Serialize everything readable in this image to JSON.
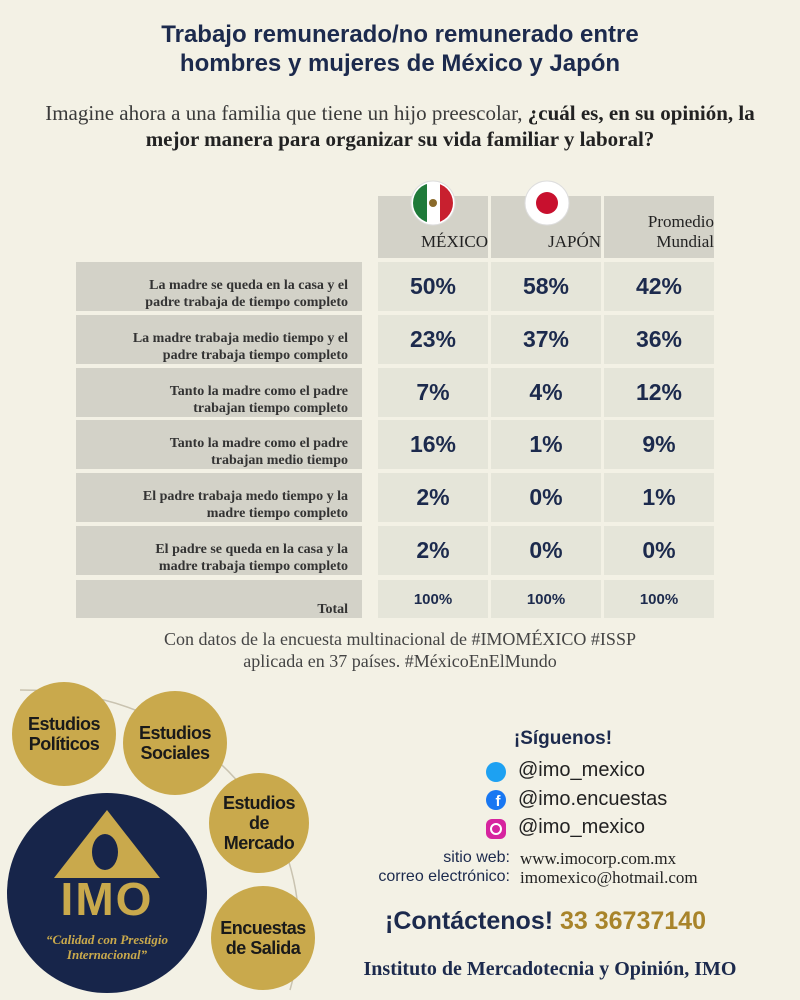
{
  "header": {
    "title_lines": [
      "Trabajo remunerado/no remunerado entre",
      "hombres y mujeres de México y Japón"
    ],
    "question_plain": "Imagine ahora a una familia que tiene un hijo preescolar, ",
    "question_bold": "¿cuál es, en su opinión, la mejor manera para organizar su vida familiar y laboral?"
  },
  "table": {
    "columns": [
      [
        "MÉXICO"
      ],
      [
        "JAPÓN"
      ],
      [
        "Promedio",
        "Mundial"
      ]
    ],
    "rows": [
      {
        "label": [
          "La madre se queda en la casa y el",
          "padre trabaja de tiempo completo"
        ],
        "cells": [
          "50%",
          "58%",
          "42%"
        ]
      },
      {
        "label": [
          "La madre trabaja medio tiempo y el",
          "padre trabaja tiempo completo"
        ],
        "cells": [
          "23%",
          "37%",
          "36%"
        ]
      },
      {
        "label": [
          "Tanto la madre como el padre",
          "trabajan tiempo completo"
        ],
        "cells": [
          "7%",
          "4%",
          "12%"
        ]
      },
      {
        "label": [
          "Tanto la madre como el padre",
          "trabajan medio tiempo"
        ],
        "cells": [
          "16%",
          "1%",
          "9%"
        ]
      },
      {
        "label": [
          "El padre trabaja medo tiempo y la",
          "madre tiempo completo"
        ],
        "cells": [
          "2%",
          "0%",
          "1%"
        ]
      },
      {
        "label": [
          "El padre se queda en la casa y la",
          "madre trabaja tiempo completo"
        ],
        "cells": [
          "2%",
          "0%",
          "0%"
        ]
      }
    ],
    "total": {
      "label": [
        "Total"
      ],
      "cells": [
        "100%",
        "100%",
        "100%"
      ]
    }
  },
  "source_lines": [
    "Con datos de la encuesta multinacional de #IMOMÉXICO #ISSP",
    "aplicada en 37 países. #MéxicoEnElMundo"
  ],
  "services": [
    [
      "Estudios",
      "Políticos"
    ],
    [
      "Estudios",
      "Sociales"
    ],
    [
      "Estudios",
      "de",
      "Mercado"
    ],
    [
      "Encuestas",
      "de Salida"
    ]
  ],
  "logo": {
    "name": "IMO",
    "tagline_lines": [
      "“Calidad con Prestigio",
      "Internacional”"
    ]
  },
  "social": {
    "heading": "¡Síguenos!",
    "accounts": [
      "@imo_mexico",
      "@imo.encuestas",
      "@imo_mexico"
    ]
  },
  "contact": {
    "web_label": "sitio web:",
    "web": "www.imocorp.com.mx",
    "email_label": "correo electrónico:",
    "email": "imomexico@hotmail.com",
    "cta": "¡Contáctenos!",
    "phone": "33 36737140"
  },
  "footer": "Instituto de Mercadotecnia y Opinión, IMO"
}
